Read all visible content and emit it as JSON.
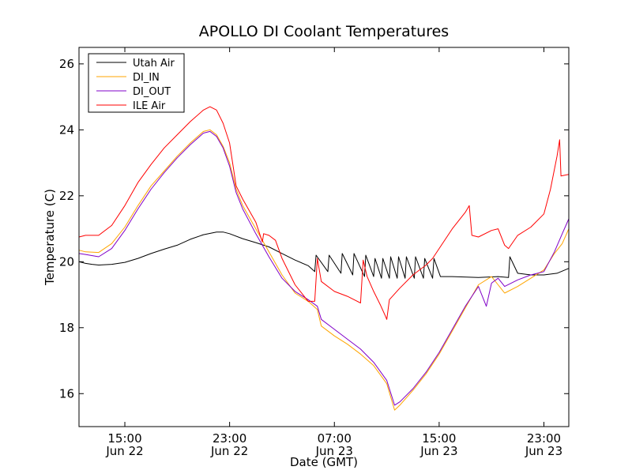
{
  "chart_data": {
    "type": "line",
    "title": "APOLLO DI Coolant Temperatures",
    "xlabel": "Date (GMT)",
    "ylabel": "Temperature (C)",
    "x_unit": "hours since Jun 22 00:00 GMT",
    "xlim": [
      11.5,
      48.9
    ],
    "ylim": [
      15.0,
      26.5
    ],
    "y_ticks": [
      16,
      18,
      20,
      22,
      24,
      26
    ],
    "x_ticks": [
      {
        "x": 15,
        "time": "15:00",
        "date": "Jun 22"
      },
      {
        "x": 23,
        "time": "23:00",
        "date": "Jun 22"
      },
      {
        "x": 31,
        "time": "07:00",
        "date": "Jun 23"
      },
      {
        "x": 39,
        "time": "15:00",
        "date": "Jun 23"
      },
      {
        "x": 47,
        "time": "23:00",
        "date": "Jun 23"
      }
    ],
    "legend_position": "top-left",
    "series": [
      {
        "name": "Utah Air",
        "color": "#000000",
        "points": [
          [
            11.5,
            20.0
          ],
          [
            12.0,
            19.95
          ],
          [
            12.5,
            19.92
          ],
          [
            13.0,
            19.9
          ],
          [
            14.0,
            19.92
          ],
          [
            15.0,
            19.98
          ],
          [
            16.0,
            20.1
          ],
          [
            17.0,
            20.25
          ],
          [
            18.0,
            20.38
          ],
          [
            19.0,
            20.5
          ],
          [
            20.0,
            20.68
          ],
          [
            21.0,
            20.82
          ],
          [
            22.0,
            20.9
          ],
          [
            22.5,
            20.9
          ],
          [
            23.0,
            20.85
          ],
          [
            24.0,
            20.7
          ],
          [
            25.0,
            20.58
          ],
          [
            26.0,
            20.45
          ],
          [
            27.0,
            20.25
          ],
          [
            28.0,
            20.05
          ],
          [
            29.0,
            19.88
          ],
          [
            29.5,
            19.7
          ],
          [
            29.6,
            20.2
          ],
          [
            30.5,
            19.7
          ],
          [
            30.6,
            20.2
          ],
          [
            31.5,
            19.65
          ],
          [
            31.6,
            20.25
          ],
          [
            32.4,
            19.6
          ],
          [
            32.5,
            20.25
          ],
          [
            33.3,
            19.55
          ],
          [
            33.4,
            20.2
          ],
          [
            34.0,
            19.55
          ],
          [
            34.1,
            20.1
          ],
          [
            34.6,
            19.5
          ],
          [
            34.7,
            20.1
          ],
          [
            35.2,
            19.5
          ],
          [
            35.3,
            20.15
          ],
          [
            35.8,
            19.5
          ],
          [
            35.9,
            20.15
          ],
          [
            36.4,
            19.5
          ],
          [
            36.5,
            20.15
          ],
          [
            37.1,
            19.5
          ],
          [
            37.2,
            20.15
          ],
          [
            37.8,
            19.5
          ],
          [
            37.9,
            20.1
          ],
          [
            38.5,
            19.5
          ],
          [
            38.6,
            20.1
          ],
          [
            39.1,
            19.55
          ],
          [
            40.0,
            19.55
          ],
          [
            42.0,
            19.52
          ],
          [
            43.5,
            19.55
          ],
          [
            44.3,
            19.52
          ],
          [
            44.4,
            20.15
          ],
          [
            45.0,
            19.65
          ],
          [
            46.0,
            19.6
          ],
          [
            47.0,
            19.6
          ],
          [
            48.0,
            19.65
          ],
          [
            48.9,
            19.8
          ]
        ]
      },
      {
        "name": "DI_IN",
        "color": "#ffa500",
        "points": [
          [
            11.5,
            20.35
          ],
          [
            12.0,
            20.3
          ],
          [
            13.0,
            20.28
          ],
          [
            14.0,
            20.55
          ],
          [
            15.0,
            21.05
          ],
          [
            16.0,
            21.7
          ],
          [
            17.0,
            22.3
          ],
          [
            18.0,
            22.75
          ],
          [
            19.0,
            23.2
          ],
          [
            20.0,
            23.6
          ],
          [
            21.0,
            23.95
          ],
          [
            21.5,
            24.0
          ],
          [
            22.0,
            23.85
          ],
          [
            22.5,
            23.5
          ],
          [
            23.0,
            23.0
          ],
          [
            23.5,
            22.2
          ],
          [
            24.0,
            21.7
          ],
          [
            25.0,
            21.0
          ],
          [
            26.0,
            20.3
          ],
          [
            27.0,
            19.6
          ],
          [
            28.0,
            19.05
          ],
          [
            29.0,
            18.8
          ],
          [
            29.7,
            18.55
          ],
          [
            30.0,
            18.05
          ],
          [
            31.0,
            17.75
          ],
          [
            32.0,
            17.5
          ],
          [
            33.0,
            17.2
          ],
          [
            34.0,
            16.85
          ],
          [
            35.0,
            16.3
          ],
          [
            35.6,
            15.5
          ],
          [
            36.0,
            15.65
          ],
          [
            37.0,
            16.1
          ],
          [
            38.0,
            16.6
          ],
          [
            39.0,
            17.2
          ],
          [
            40.0,
            17.9
          ],
          [
            41.0,
            18.6
          ],
          [
            42.0,
            19.3
          ],
          [
            43.0,
            19.55
          ],
          [
            43.5,
            19.3
          ],
          [
            44.0,
            19.05
          ],
          [
            45.0,
            19.25
          ],
          [
            46.0,
            19.5
          ],
          [
            47.0,
            19.75
          ],
          [
            47.8,
            20.25
          ],
          [
            48.4,
            20.55
          ],
          [
            48.9,
            21.0
          ]
        ]
      },
      {
        "name": "DI_OUT",
        "color": "#8000c8",
        "points": [
          [
            11.5,
            20.25
          ],
          [
            12.0,
            20.22
          ],
          [
            13.0,
            20.15
          ],
          [
            14.0,
            20.4
          ],
          [
            15.0,
            20.95
          ],
          [
            16.0,
            21.6
          ],
          [
            17.0,
            22.2
          ],
          [
            18.0,
            22.7
          ],
          [
            19.0,
            23.15
          ],
          [
            20.0,
            23.55
          ],
          [
            21.0,
            23.9
          ],
          [
            21.5,
            23.95
          ],
          [
            22.0,
            23.8
          ],
          [
            22.5,
            23.45
          ],
          [
            23.0,
            22.9
          ],
          [
            23.5,
            22.1
          ],
          [
            24.0,
            21.6
          ],
          [
            25.0,
            20.85
          ],
          [
            26.0,
            20.15
          ],
          [
            27.0,
            19.5
          ],
          [
            28.0,
            19.1
          ],
          [
            29.0,
            18.85
          ],
          [
            29.7,
            18.65
          ],
          [
            30.0,
            18.25
          ],
          [
            31.0,
            17.95
          ],
          [
            32.0,
            17.65
          ],
          [
            33.0,
            17.35
          ],
          [
            34.0,
            16.95
          ],
          [
            35.0,
            16.4
          ],
          [
            35.6,
            15.65
          ],
          [
            36.0,
            15.75
          ],
          [
            37.0,
            16.15
          ],
          [
            38.0,
            16.65
          ],
          [
            39.0,
            17.25
          ],
          [
            40.0,
            17.95
          ],
          [
            41.0,
            18.65
          ],
          [
            42.0,
            19.25
          ],
          [
            42.6,
            18.65
          ],
          [
            43.0,
            19.35
          ],
          [
            43.5,
            19.5
          ],
          [
            44.0,
            19.25
          ],
          [
            45.0,
            19.45
          ],
          [
            46.0,
            19.6
          ],
          [
            47.0,
            19.7
          ],
          [
            47.8,
            20.3
          ],
          [
            48.4,
            20.85
          ],
          [
            48.9,
            21.3
          ]
        ]
      },
      {
        "name": "ILE Air",
        "color": "#ff0000",
        "points": [
          [
            11.5,
            20.75
          ],
          [
            12.0,
            20.8
          ],
          [
            13.0,
            20.8
          ],
          [
            14.0,
            21.1
          ],
          [
            15.0,
            21.7
          ],
          [
            16.0,
            22.4
          ],
          [
            17.0,
            22.95
          ],
          [
            18.0,
            23.45
          ],
          [
            19.0,
            23.85
          ],
          [
            20.0,
            24.25
          ],
          [
            21.0,
            24.6
          ],
          [
            21.5,
            24.7
          ],
          [
            22.0,
            24.6
          ],
          [
            22.5,
            24.2
          ],
          [
            23.0,
            23.6
          ],
          [
            23.5,
            22.3
          ],
          [
            24.0,
            21.9
          ],
          [
            25.0,
            21.2
          ],
          [
            25.5,
            20.6
          ],
          [
            25.6,
            20.85
          ],
          [
            26.0,
            20.8
          ],
          [
            26.5,
            20.65
          ],
          [
            27.0,
            20.1
          ],
          [
            28.0,
            19.3
          ],
          [
            29.0,
            18.8
          ],
          [
            29.5,
            18.8
          ],
          [
            29.7,
            20.1
          ],
          [
            30.0,
            19.4
          ],
          [
            31.0,
            19.1
          ],
          [
            32.0,
            18.95
          ],
          [
            33.0,
            18.75
          ],
          [
            33.2,
            20.05
          ],
          [
            33.5,
            19.55
          ],
          [
            34.0,
            19.1
          ],
          [
            34.5,
            18.7
          ],
          [
            34.9,
            18.35
          ],
          [
            35.0,
            18.25
          ],
          [
            35.2,
            18.85
          ],
          [
            36.0,
            19.2
          ],
          [
            37.0,
            19.6
          ],
          [
            38.0,
            19.9
          ],
          [
            38.5,
            20.1
          ],
          [
            39.0,
            20.4
          ],
          [
            40.0,
            21.0
          ],
          [
            41.0,
            21.5
          ],
          [
            41.3,
            21.7
          ],
          [
            41.5,
            20.8
          ],
          [
            42.0,
            20.75
          ],
          [
            43.0,
            20.95
          ],
          [
            43.5,
            21.0
          ],
          [
            44.0,
            20.5
          ],
          [
            44.3,
            20.4
          ],
          [
            45.0,
            20.8
          ],
          [
            46.0,
            21.05
          ],
          [
            47.0,
            21.45
          ],
          [
            47.5,
            22.2
          ],
          [
            48.0,
            23.2
          ],
          [
            48.2,
            23.7
          ],
          [
            48.3,
            22.6
          ],
          [
            48.9,
            22.65
          ]
        ]
      }
    ]
  }
}
